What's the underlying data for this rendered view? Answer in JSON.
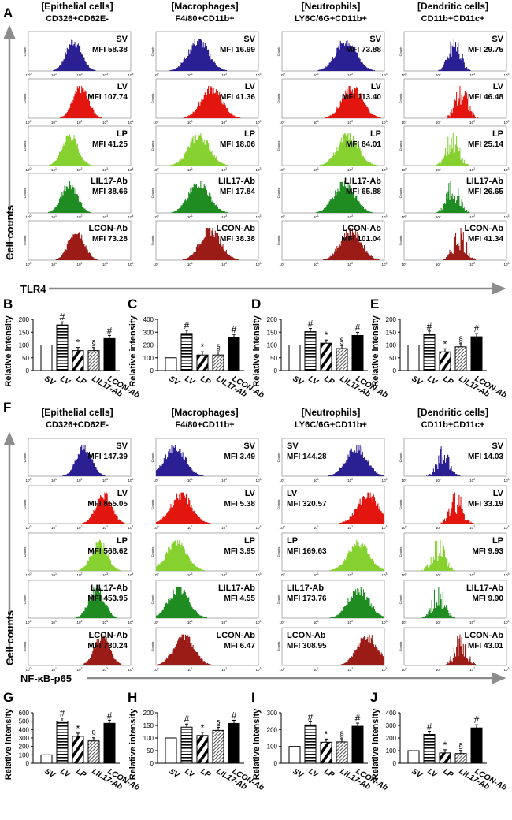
{
  "arrow_color": "#8c8c8c",
  "hist_colors": {
    "SV": "#2b1f94",
    "LV": "#e3160f",
    "LP": "#86d030",
    "LIL17-Ab": "#1f8c22",
    "LCON-Ab": "#9b1b17"
  },
  "hist_y_label": "Counts",
  "tick_base": "10",
  "y_axis_title": "Cell counts",
  "bar_axis_title": "Relative intensity",
  "bar_categories": [
    "SV",
    "LV",
    "LP",
    "LIL17-Ab",
    "LCON-Ab"
  ],
  "bar_markers": [
    "",
    "#",
    "*",
    "§",
    "#"
  ],
  "chart_data": [
    {
      "panel": "A",
      "type": "histogram",
      "marker": "TLR4",
      "conditions": [
        "SV",
        "LV",
        "LP",
        "LIL17-Ab",
        "LCON-Ab"
      ],
      "columns": [
        {
          "title": "[Epithelial cells]",
          "subtitle": "CD326+CD62E-",
          "x_ticks": [
            "0",
            "1",
            "2",
            "3",
            "4"
          ],
          "mfi": [
            "58.38",
            "107.74",
            "41.25",
            "38.66",
            "73.28"
          ]
        },
        {
          "title": "[Macrophages]",
          "subtitle": "F4/80+CD11b+",
          "x_ticks": [
            "0",
            "1",
            "2",
            "3"
          ],
          "mfi": [
            "16.99",
            "41.36",
            "18.06",
            "17.84",
            "38.38"
          ]
        },
        {
          "title": "[Neutrophils]",
          "subtitle": "LY6C/6G+CD11b+",
          "x_ticks": [
            "0",
            "1",
            "2",
            "3"
          ],
          "mfi": [
            "73.88",
            "113.40",
            "84.01",
            "65.88",
            "101.04"
          ]
        },
        {
          "title": "[Dendritic cells]",
          "subtitle": "CD11b+CD11c+",
          "x_ticks": [
            "0",
            "1",
            "2",
            "3"
          ],
          "mfi": [
            "29.75",
            "46.48",
            "25.14",
            "26.65",
            "41.34"
          ]
        }
      ]
    },
    {
      "panel": "B",
      "type": "bar",
      "ylabel": "Relative intensity",
      "ylim": [
        0,
        200
      ],
      "yticks": [
        "0",
        "50",
        "100",
        "150",
        "200"
      ],
      "values": [
        100,
        178,
        78,
        78,
        125
      ]
    },
    {
      "panel": "C",
      "type": "bar",
      "ylabel": "Relative intensity",
      "ylim": [
        0,
        400
      ],
      "yticks": [
        "0",
        "100",
        "200",
        "300",
        "400"
      ],
      "values": [
        100,
        290,
        122,
        122,
        258
      ]
    },
    {
      "panel": "D",
      "type": "bar",
      "ylabel": "Relative intensity",
      "ylim": [
        0,
        200
      ],
      "yticks": [
        "0",
        "50",
        "100",
        "150",
        "200"
      ],
      "values": [
        100,
        152,
        107,
        86,
        137
      ]
    },
    {
      "panel": "E",
      "type": "bar",
      "ylabel": "Relative intensity",
      "ylim": [
        0,
        200
      ],
      "yticks": [
        "0",
        "50",
        "100",
        "150",
        "200"
      ],
      "values": [
        100,
        142,
        73,
        93,
        132
      ]
    },
    {
      "panel": "F",
      "type": "histogram",
      "marker": "NF-κB-p65",
      "conditions": [
        "SV",
        "LV",
        "LP",
        "LIL17-Ab",
        "LCON-Ab"
      ],
      "columns": [
        {
          "title": "[Epithelial cells]",
          "subtitle": "CD326+CD62E-",
          "x_ticks": [
            "0",
            "1",
            "2",
            "3",
            "4"
          ],
          "mfi": [
            "147.39",
            "855.05",
            "568.62",
            "453.95",
            "730.24"
          ]
        },
        {
          "title": "[Macrophages]",
          "subtitle": "F4/80+CD11b+",
          "x_ticks": [
            "0",
            "1",
            "2",
            "3"
          ],
          "mfi": [
            "3.49",
            "5.38",
            "3.95",
            "4.55",
            "6.47"
          ]
        },
        {
          "title": "[Neutrophils]",
          "subtitle": "LY6C/6G+CD11b+",
          "x_ticks": [
            "0",
            "1",
            "2",
            "3"
          ],
          "mfi": [
            "144.28",
            "320.57",
            "169.63",
            "173.76",
            "308.95"
          ]
        },
        {
          "title": "[Dendritic cells]",
          "subtitle": "CD11b+CD11c+",
          "x_ticks": [
            "0",
            "1",
            "2",
            "3"
          ],
          "mfi": [
            "14.03",
            "33.19",
            "9.93",
            "9.90",
            "43.01"
          ]
        }
      ]
    },
    {
      "panel": "G",
      "type": "bar",
      "ylabel": "Relative intensity",
      "ylim": [
        0,
        600
      ],
      "yticks": [
        "0",
        "100",
        "200",
        "300",
        "400",
        "500",
        "600"
      ],
      "values": [
        100,
        500,
        320,
        265,
        475
      ]
    },
    {
      "panel": "H",
      "type": "bar",
      "ylabel": "Relative intensity",
      "ylim": [
        0,
        200
      ],
      "yticks": [
        "0",
        "50",
        "100",
        "150",
        "200"
      ],
      "values": [
        100,
        143,
        110,
        130,
        158
      ]
    },
    {
      "panel": "I",
      "type": "bar",
      "ylabel": "Relative intensity",
      "ylim": [
        0,
        300
      ],
      "yticks": [
        "0",
        "100",
        "200",
        "300"
      ],
      "values": [
        100,
        228,
        125,
        127,
        220
      ]
    },
    {
      "panel": "J",
      "type": "bar",
      "ylabel": "Relative intensity",
      "ylim": [
        0,
        400
      ],
      "yticks": [
        "0",
        "100",
        "200",
        "300",
        "400"
      ],
      "values": [
        100,
        228,
        82,
        77,
        280
      ]
    }
  ],
  "mfi_label": "MFI"
}
